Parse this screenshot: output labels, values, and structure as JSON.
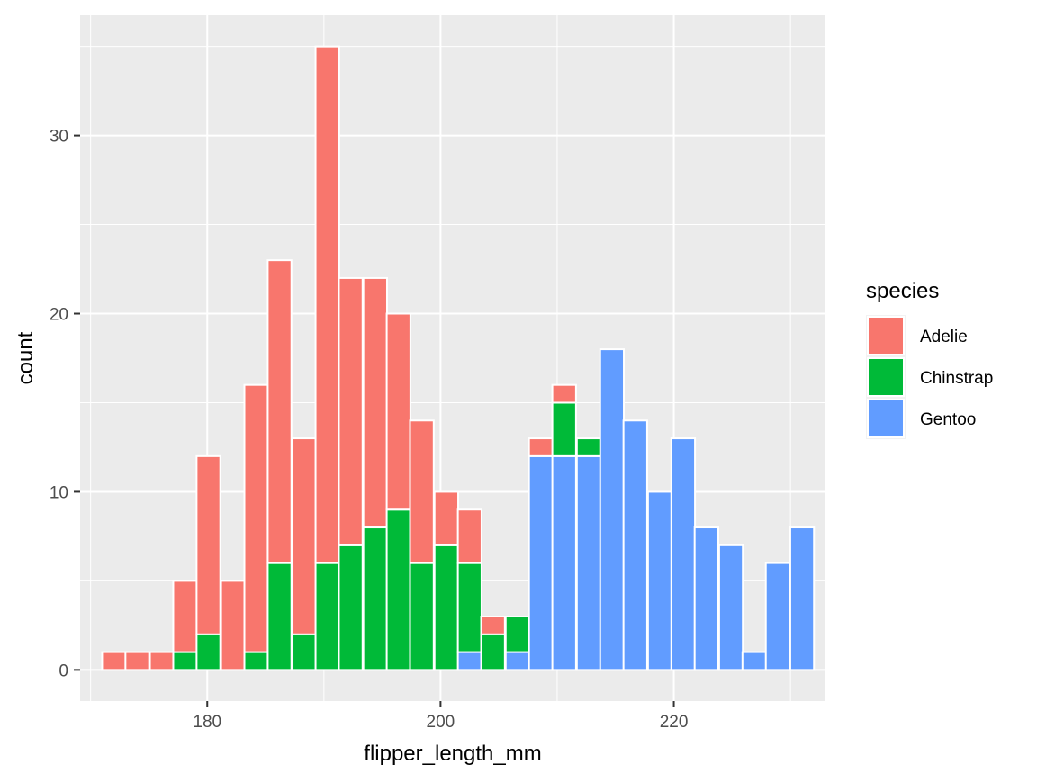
{
  "chart_data": {
    "type": "bar",
    "stacked": true,
    "xlabel": "flipper_length_mm",
    "ylabel": "count",
    "xlim": [
      169.1,
      233.0
    ],
    "ylim": [
      -1.75,
      36.75
    ],
    "x_ticks": [
      180,
      200,
      220
    ],
    "y_ticks": [
      0,
      10,
      20,
      30
    ],
    "grid": true,
    "bin_width": 2.03,
    "legend": {
      "title": "species",
      "position": "right"
    },
    "bin_centers": [
      172.0,
      174.0,
      176.1,
      178.1,
      180.1,
      182.2,
      184.2,
      186.2,
      188.3,
      190.3,
      192.3,
      194.4,
      196.4,
      198.4,
      200.5,
      202.5,
      204.5,
      206.6,
      208.6,
      210.6,
      212.7,
      214.7,
      216.7,
      218.8,
      220.8,
      222.8,
      224.9,
      226.9,
      228.9,
      231.0
    ],
    "series": [
      {
        "name": "Adelie",
        "color": "#F8766D",
        "values": [
          1,
          1,
          1,
          4,
          10,
          5,
          15,
          17,
          11,
          29,
          15,
          14,
          11,
          8,
          3,
          3,
          1,
          0,
          1,
          1,
          0,
          0,
          0,
          0,
          0,
          0,
          0,
          0,
          0,
          0
        ]
      },
      {
        "name": "Chinstrap",
        "color": "#00BA38",
        "values": [
          0,
          0,
          0,
          1,
          2,
          0,
          1,
          6,
          2,
          6,
          7,
          8,
          9,
          6,
          7,
          5,
          2,
          2,
          0,
          3,
          1,
          0,
          0,
          0,
          0,
          0,
          0,
          0,
          0,
          0
        ]
      },
      {
        "name": "Gentoo",
        "color": "#619CFF",
        "values": [
          0,
          0,
          0,
          0,
          0,
          0,
          0,
          0,
          0,
          0,
          0,
          0,
          0,
          0,
          0,
          1,
          0,
          1,
          12,
          12,
          12,
          18,
          14,
          10,
          13,
          8,
          7,
          1,
          6,
          8
        ]
      }
    ]
  }
}
